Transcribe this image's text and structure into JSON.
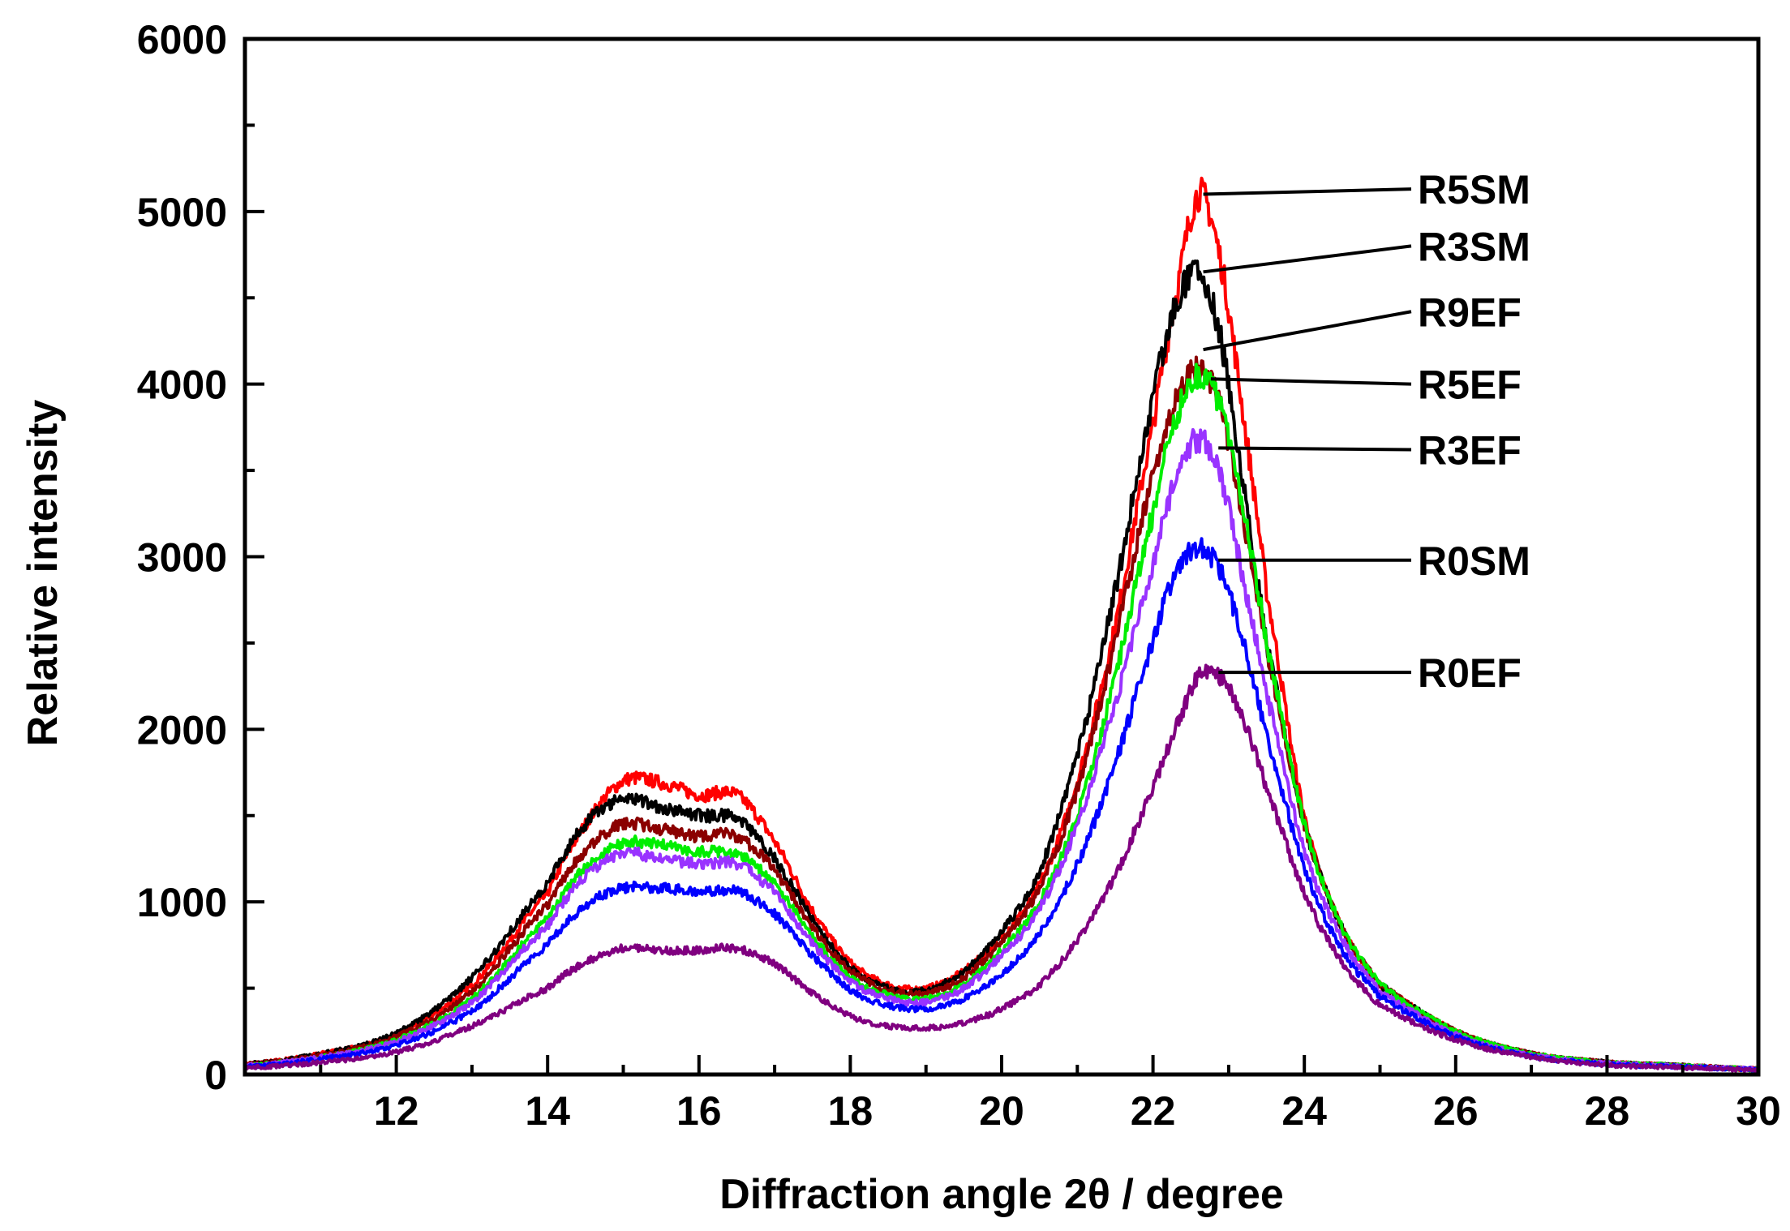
{
  "chart_data": {
    "type": "line",
    "title": "",
    "xlabel": "Diffraction  angle 2θ / degree",
    "ylabel": "Relative intensity",
    "xlim": [
      10,
      30
    ],
    "ylim": [
      0,
      6000
    ],
    "x_ticks": [
      12,
      14,
      16,
      18,
      20,
      22,
      24,
      26,
      28,
      30
    ],
    "y_ticks": [
      0,
      1000,
      2000,
      3000,
      4000,
      5000,
      6000
    ],
    "x_tick_labels": [
      "12",
      "14",
      "16",
      "18",
      "20",
      "22",
      "24",
      "26",
      "28",
      "30"
    ],
    "y_tick_labels": [
      "0",
      "1000",
      "2000",
      "3000",
      "4000",
      "5000",
      "6000"
    ],
    "grid": false,
    "series": [
      {
        "name": "R5SM",
        "color": "#ff0000",
        "x": [
          10,
          11,
          12,
          13,
          14,
          14.5,
          15,
          15.5,
          16,
          16.5,
          17,
          17.5,
          18,
          18.5,
          19,
          19.5,
          20,
          20.5,
          21,
          21.5,
          22,
          22.3,
          22.6,
          22.9,
          23.2,
          23.5,
          24,
          24.5,
          25,
          26,
          27,
          28,
          29,
          30
        ],
        "y": [
          60,
          120,
          230,
          520,
          1050,
          1450,
          1700,
          1690,
          1620,
          1620,
          1350,
          950,
          650,
          520,
          500,
          600,
          800,
          1100,
          1700,
          2600,
          3750,
          4500,
          5100,
          4700,
          3800,
          2800,
          1500,
          850,
          520,
          250,
          120,
          70,
          50,
          30
        ]
      },
      {
        "name": "R3SM",
        "color": "#000000",
        "x": [
          10,
          11,
          12,
          13,
          14,
          14.5,
          15,
          15.5,
          16,
          16.5,
          17,
          17.5,
          18,
          18.5,
          19,
          19.5,
          20,
          20.5,
          21,
          21.5,
          22,
          22.3,
          22.6,
          22.9,
          23.2,
          23.5,
          24,
          24.5,
          25,
          26,
          27,
          28,
          29,
          30
        ],
        "y": [
          60,
          120,
          240,
          560,
          1100,
          1450,
          1600,
          1550,
          1500,
          1480,
          1250,
          900,
          620,
          500,
          490,
          600,
          830,
          1180,
          1850,
          2800,
          3900,
          4450,
          4650,
          4250,
          3400,
          2500,
          1450,
          850,
          520,
          250,
          120,
          70,
          50,
          30
        ]
      },
      {
        "name": "R9EF",
        "color": "#8b0000",
        "x": [
          10,
          11,
          12,
          13,
          14,
          14.5,
          15,
          15.5,
          16,
          16.5,
          17,
          17.5,
          18,
          18.5,
          19,
          19.5,
          20,
          20.5,
          21,
          21.5,
          22,
          22.3,
          22.6,
          22.9,
          23.2,
          23.5,
          24,
          24.5,
          25,
          26,
          27,
          28,
          29,
          30
        ],
        "y": [
          60,
          110,
          220,
          480,
          980,
          1300,
          1450,
          1420,
          1380,
          1380,
          1180,
          850,
          600,
          490,
          470,
          560,
          770,
          1080,
          1650,
          2500,
          3450,
          3900,
          4100,
          3850,
          3200,
          2450,
          1450,
          850,
          520,
          250,
          120,
          70,
          50,
          30
        ]
      },
      {
        "name": "R5EF",
        "color": "#00ee00",
        "x": [
          10,
          11,
          12,
          13,
          14,
          14.5,
          15,
          15.5,
          16,
          16.5,
          17,
          17.5,
          18,
          18.5,
          19,
          19.5,
          20,
          20.5,
          21,
          21.5,
          22,
          22.3,
          22.6,
          22.9,
          23.2,
          23.5,
          24,
          24.5,
          25,
          26,
          27,
          28,
          29,
          30
        ],
        "y": [
          50,
          100,
          200,
          440,
          900,
          1200,
          1340,
          1330,
          1290,
          1280,
          1100,
          800,
          560,
          460,
          440,
          520,
          720,
          1000,
          1500,
          2300,
          3250,
          3800,
          4050,
          3850,
          3250,
          2500,
          1450,
          850,
          520,
          250,
          120,
          70,
          50,
          30
        ]
      },
      {
        "name": "R3EF",
        "color": "#9933ff",
        "x": [
          10,
          11,
          12,
          13,
          14,
          14.5,
          15,
          15.5,
          16,
          16.5,
          17,
          17.5,
          18,
          18.5,
          19,
          19.5,
          20,
          20.5,
          21,
          21.5,
          22,
          22.3,
          22.6,
          22.9,
          23.2,
          23.5,
          24,
          24.5,
          25,
          26,
          27,
          28,
          29,
          30
        ],
        "y": [
          50,
          100,
          190,
          420,
          860,
          1150,
          1280,
          1250,
          1220,
          1220,
          1050,
          760,
          540,
          440,
          420,
          500,
          690,
          960,
          1450,
          2150,
          2950,
          3450,
          3680,
          3450,
          2850,
          2200,
          1300,
          780,
          480,
          230,
          110,
          65,
          45,
          30
        ]
      },
      {
        "name": "R0SM",
        "color": "#0000ff",
        "x": [
          10,
          11,
          12,
          13,
          14,
          14.5,
          15,
          15.5,
          16,
          16.5,
          17,
          17.5,
          18,
          18.5,
          19,
          19.5,
          20,
          20.5,
          21,
          21.5,
          22,
          22.3,
          22.6,
          22.9,
          23.2,
          23.5,
          24,
          24.5,
          25,
          26,
          27,
          28,
          29,
          30
        ],
        "y": [
          45,
          90,
          170,
          370,
          750,
          980,
          1080,
          1080,
          1060,
          1060,
          930,
          690,
          490,
          400,
          380,
          440,
          580,
          820,
          1220,
          1800,
          2500,
          2900,
          3050,
          2900,
          2500,
          1950,
          1200,
          720,
          450,
          220,
          105,
          60,
          45,
          28
        ]
      },
      {
        "name": "R0EF",
        "color": "#800080",
        "x": [
          10,
          11,
          12,
          13,
          14,
          14.5,
          15,
          15.5,
          16,
          16.5,
          17,
          17.5,
          18,
          18.5,
          19,
          19.5,
          20,
          20.5,
          21,
          21.5,
          22,
          22.3,
          22.6,
          22.9,
          23.2,
          23.5,
          24,
          24.5,
          25,
          26,
          27,
          28,
          29,
          30
        ],
        "y": [
          40,
          70,
          130,
          280,
          500,
          650,
          730,
          720,
          720,
          730,
          640,
          470,
          340,
          280,
          270,
          300,
          380,
          520,
          780,
          1150,
          1650,
          2000,
          2300,
          2300,
          2050,
          1650,
          1050,
          650,
          400,
          200,
          100,
          55,
          40,
          25
        ]
      }
    ],
    "annotations": [
      {
        "label": "R5SM",
        "series": "R5SM",
        "peak_x": 22.6,
        "peak_y": 5100,
        "text_y": 5130
      },
      {
        "label": "R3SM",
        "series": "R3SM",
        "peak_x": 22.6,
        "peak_y": 4650,
        "text_y": 4800
      },
      {
        "label": "R9EF",
        "series": "R9EF",
        "peak_x": 22.6,
        "peak_y": 4200,
        "text_y": 4420
      },
      {
        "label": "R5EF",
        "series": "R5EF",
        "peak_x": 22.7,
        "peak_y": 4030,
        "text_y": 4000
      },
      {
        "label": "R3EF",
        "series": "R3EF",
        "peak_x": 22.8,
        "peak_y": 3630,
        "text_y": 3620
      },
      {
        "label": "R0SM",
        "series": "R0SM",
        "peak_x": 22.8,
        "peak_y": 2980,
        "text_y": 2980
      },
      {
        "label": "R0EF",
        "series": "R0EF",
        "peak_x": 22.8,
        "peak_y": 2330,
        "text_y": 2330
      }
    ]
  }
}
